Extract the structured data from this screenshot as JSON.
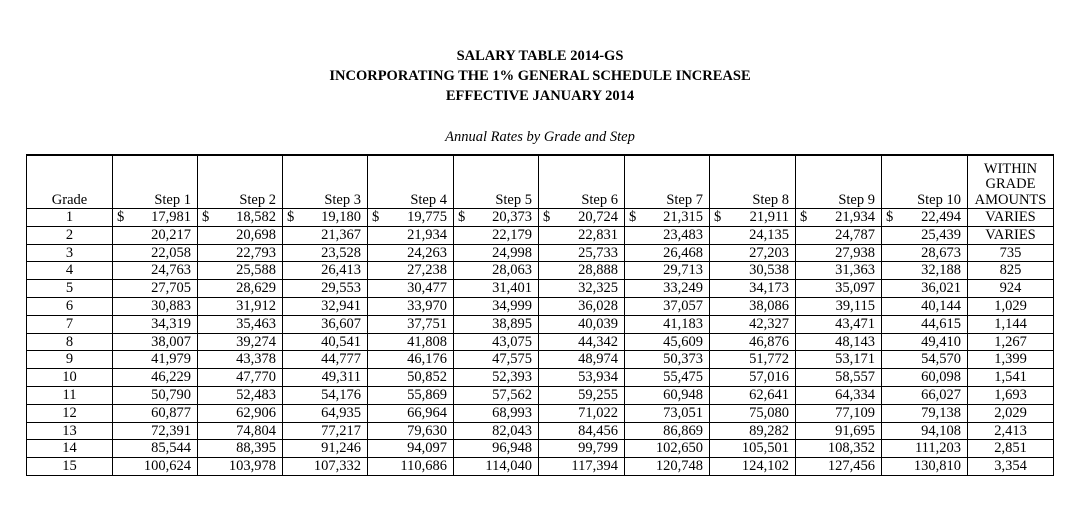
{
  "header": {
    "title_line1": "SALARY TABLE 2014-GS",
    "title_line2": "INCORPORATING THE 1% GENERAL SCHEDULE INCREASE",
    "title_line3": "EFFECTIVE JANUARY 2014",
    "subtitle": "Annual Rates by Grade and Step"
  },
  "table": {
    "grade_header": "Grade",
    "step_headers": [
      "Step 1",
      "Step 2",
      "Step 3",
      "Step 4",
      "Step 5",
      "Step 6",
      "Step 7",
      "Step 8",
      "Step 9",
      "Step 10"
    ],
    "within_header": [
      "WITHIN",
      "GRADE",
      "AMOUNTS"
    ],
    "currency_symbol": "$",
    "rows": [
      {
        "grade": "1",
        "steps": [
          "17,981",
          "18,582",
          "19,180",
          "19,775",
          "20,373",
          "20,724",
          "21,315",
          "21,911",
          "21,934",
          "22,494"
        ],
        "within": "VARIES"
      },
      {
        "grade": "2",
        "steps": [
          "20,217",
          "20,698",
          "21,367",
          "21,934",
          "22,179",
          "22,831",
          "23,483",
          "24,135",
          "24,787",
          "25,439"
        ],
        "within": "VARIES"
      },
      {
        "grade": "3",
        "steps": [
          "22,058",
          "22,793",
          "23,528",
          "24,263",
          "24,998",
          "25,733",
          "26,468",
          "27,203",
          "27,938",
          "28,673"
        ],
        "within": "735"
      },
      {
        "grade": "4",
        "steps": [
          "24,763",
          "25,588",
          "26,413",
          "27,238",
          "28,063",
          "28,888",
          "29,713",
          "30,538",
          "31,363",
          "32,188"
        ],
        "within": "825"
      },
      {
        "grade": "5",
        "steps": [
          "27,705",
          "28,629",
          "29,553",
          "30,477",
          "31,401",
          "32,325",
          "33,249",
          "34,173",
          "35,097",
          "36,021"
        ],
        "within": "924"
      },
      {
        "grade": "6",
        "steps": [
          "30,883",
          "31,912",
          "32,941",
          "33,970",
          "34,999",
          "36,028",
          "37,057",
          "38,086",
          "39,115",
          "40,144"
        ],
        "within": "1,029"
      },
      {
        "grade": "7",
        "steps": [
          "34,319",
          "35,463",
          "36,607",
          "37,751",
          "38,895",
          "40,039",
          "41,183",
          "42,327",
          "43,471",
          "44,615"
        ],
        "within": "1,144"
      },
      {
        "grade": "8",
        "steps": [
          "38,007",
          "39,274",
          "40,541",
          "41,808",
          "43,075",
          "44,342",
          "45,609",
          "46,876",
          "48,143",
          "49,410"
        ],
        "within": "1,267"
      },
      {
        "grade": "9",
        "steps": [
          "41,979",
          "43,378",
          "44,777",
          "46,176",
          "47,575",
          "48,974",
          "50,373",
          "51,772",
          "53,171",
          "54,570"
        ],
        "within": "1,399"
      },
      {
        "grade": "10",
        "steps": [
          "46,229",
          "47,770",
          "49,311",
          "50,852",
          "52,393",
          "53,934",
          "55,475",
          "57,016",
          "58,557",
          "60,098"
        ],
        "within": "1,541"
      },
      {
        "grade": "11",
        "steps": [
          "50,790",
          "52,483",
          "54,176",
          "55,869",
          "57,562",
          "59,255",
          "60,948",
          "62,641",
          "64,334",
          "66,027"
        ],
        "within": "1,693"
      },
      {
        "grade": "12",
        "steps": [
          "60,877",
          "62,906",
          "64,935",
          "66,964",
          "68,993",
          "71,022",
          "73,051",
          "75,080",
          "77,109",
          "79,138"
        ],
        "within": "2,029"
      },
      {
        "grade": "13",
        "steps": [
          "72,391",
          "74,804",
          "77,217",
          "79,630",
          "82,043",
          "84,456",
          "86,869",
          "89,282",
          "91,695",
          "94,108"
        ],
        "within": "2,413"
      },
      {
        "grade": "14",
        "steps": [
          "85,544",
          "88,395",
          "91,246",
          "94,097",
          "96,948",
          "99,799",
          "102,650",
          "105,501",
          "108,352",
          "111,203"
        ],
        "within": "2,851"
      },
      {
        "grade": "15",
        "steps": [
          "100,624",
          "103,978",
          "107,332",
          "110,686",
          "114,040",
          "117,394",
          "120,748",
          "124,102",
          "127,456",
          "130,810"
        ],
        "within": "3,354"
      }
    ]
  }
}
